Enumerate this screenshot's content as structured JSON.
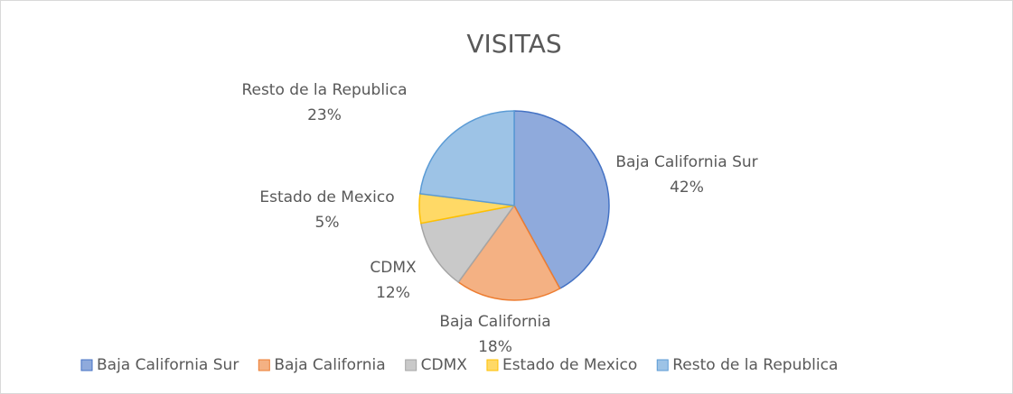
{
  "chart_data": {
    "type": "pie",
    "title": "VISITAS",
    "categories": [
      "Baja California Sur",
      "Baja California",
      "CDMX",
      "Estado de Mexico",
      "Resto de la Republica"
    ],
    "values": [
      42,
      18,
      12,
      5,
      23
    ],
    "value_labels": [
      "42%",
      "18%",
      "12%",
      "5%",
      "23%"
    ],
    "colors": [
      "#8faadc",
      "#f4b183",
      "#c9c9c9",
      "#ffd966",
      "#9dc3e6"
    ],
    "edge_colors": [
      "#4472c4",
      "#ed7d31",
      "#a5a5a5",
      "#ffc000",
      "#5b9bd5"
    ],
    "legend": "bottom"
  }
}
